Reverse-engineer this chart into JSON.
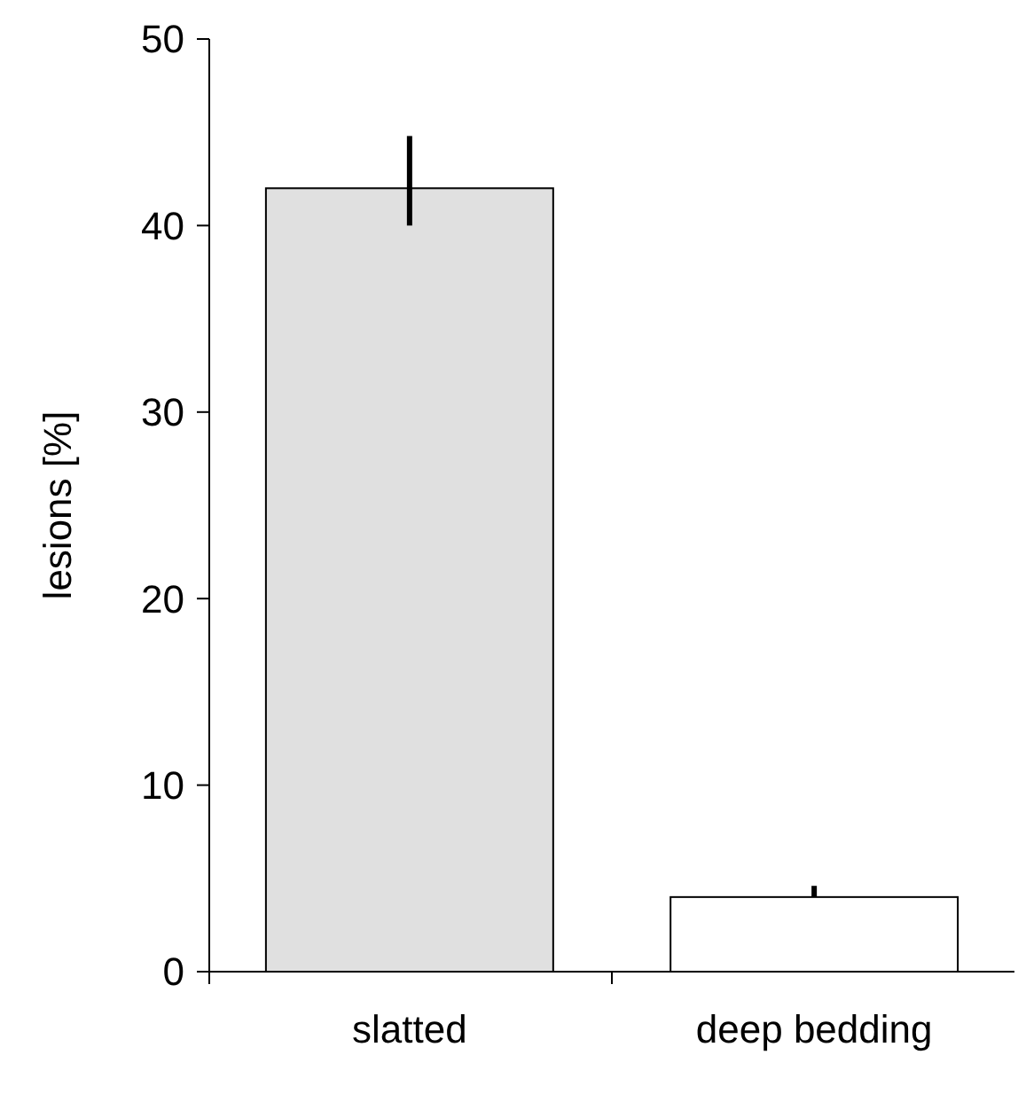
{
  "chart_data": {
    "type": "bar",
    "ylabel": "lesions [%]",
    "categories": [
      "slatted",
      "deep bedding"
    ],
    "values": [
      42,
      4
    ],
    "colors": [
      "#e0e0e0",
      "#ffffff"
    ],
    "errors": [
      [
        40,
        44.8
      ],
      [
        4,
        4.6
      ]
    ],
    "ylim": [
      0,
      50
    ],
    "yticks": [
      0,
      10,
      20,
      30,
      40,
      50
    ],
    "grid": false
  }
}
